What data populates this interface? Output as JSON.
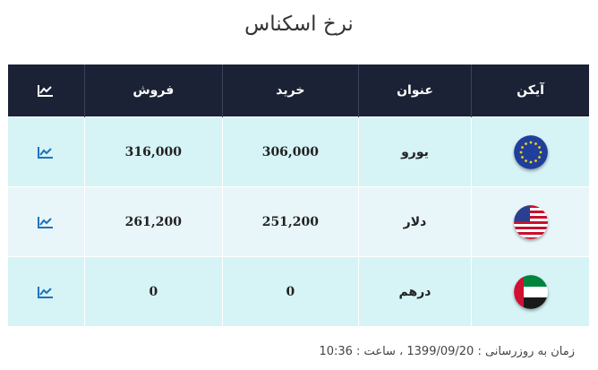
{
  "title": "نرخ اسکناس",
  "columns": {
    "icon": "آیکن",
    "name": "عنوان",
    "buy": "خرید",
    "sell": "فروش",
    "chart_icon": "chart-icon"
  },
  "rows": [
    {
      "name": "یورو",
      "buy": "306,000",
      "sell": "316,000",
      "icon": "eu-flag-icon"
    },
    {
      "name": "دلار",
      "buy": "251,200",
      "sell": "261,200",
      "icon": "us-flag-icon"
    },
    {
      "name": "درهم",
      "buy": "0",
      "sell": "0",
      "icon": "uae-flag-icon"
    }
  ],
  "footer": {
    "text": "زمان به روزرسانی : 1399/09/20 ، ساعت : 10:36"
  },
  "colors": {
    "header_bg": "#1b2235",
    "row_a": "#d6f3f6",
    "row_b": "#e9f6f9",
    "chart_icon": "#1e73be"
  }
}
